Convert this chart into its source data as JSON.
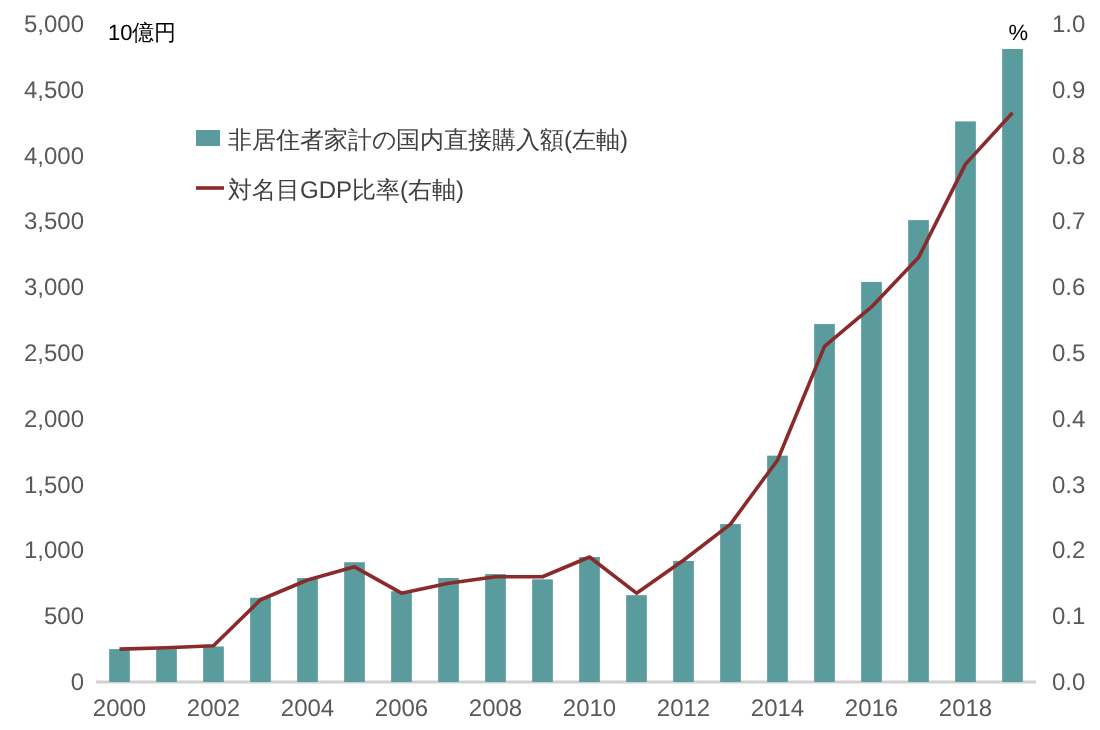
{
  "chart_data": {
    "type": "bar",
    "ylabel": "10億円",
    "y2label": "%",
    "categories": [
      "2000",
      null,
      "2002",
      null,
      "2004",
      null,
      "2006",
      null,
      "2008",
      null,
      "2010",
      null,
      "2012",
      null,
      "2014",
      null,
      "2016",
      null,
      "2018",
      null
    ],
    "series": [
      {
        "name": "非居住者家計の国内直接購入額(左軸)",
        "color": "#5a9c9e",
        "values": [
          250,
          250,
          270,
          640,
          790,
          910,
          690,
          790,
          820,
          780,
          950,
          660,
          920,
          1200,
          1720,
          2720,
          3040,
          3510,
          4260,
          4810
        ]
      },
      {
        "name": "対名目GDP比率(右軸)",
        "type": "line",
        "axis": "y2",
        "color": "#8b2a2a",
        "values": [
          0.05,
          0.052,
          0.055,
          0.125,
          0.155,
          0.175,
          0.135,
          0.15,
          0.16,
          0.16,
          0.19,
          0.135,
          0.185,
          0.24,
          0.337,
          0.51,
          0.57,
          0.645,
          0.787,
          0.865
        ]
      }
    ],
    "ylim": [
      0,
      5000
    ],
    "yticks": [
      {
        "value": 0,
        "label": "0"
      },
      {
        "value": 500,
        "label": "500"
      },
      {
        "value": 1000,
        "label": "1,000"
      },
      {
        "value": 1500,
        "label": "1,500"
      },
      {
        "value": 2000,
        "label": "2,000"
      },
      {
        "value": 2500,
        "label": "2,500"
      },
      {
        "value": 3000,
        "label": "3,000"
      },
      {
        "value": 3500,
        "label": "3,500"
      },
      {
        "value": 4000,
        "label": "4,000"
      },
      {
        "value": 4500,
        "label": "4,500"
      },
      {
        "value": 5000,
        "label": "5,000"
      }
    ],
    "y2lim": [
      0,
      1
    ],
    "y2ticks": [
      {
        "value": 0,
        "label": "0.0"
      },
      {
        "value": 0.1,
        "label": "0.1"
      },
      {
        "value": 0.2,
        "label": "0.2"
      },
      {
        "value": 0.3,
        "label": "0.3"
      },
      {
        "value": 0.4,
        "label": "0.4"
      },
      {
        "value": 0.5,
        "label": "0.5"
      },
      {
        "value": 0.6,
        "label": "0.6"
      },
      {
        "value": 0.7,
        "label": "0.7"
      },
      {
        "value": 0.8,
        "label": "0.8"
      },
      {
        "value": 0.9,
        "label": "0.9"
      },
      {
        "value": 1,
        "label": "1.0"
      }
    ],
    "legend": "top left",
    "grid": false
  }
}
